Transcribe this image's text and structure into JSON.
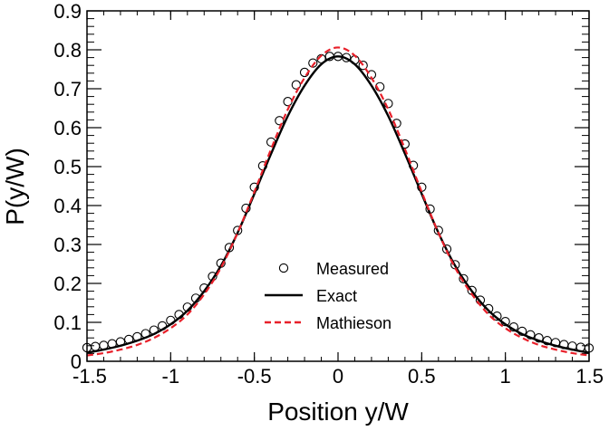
{
  "chart_data": {
    "type": "line",
    "title": "",
    "xlabel": "Position y/W",
    "ylabel": "P(y/W)",
    "xlim": [
      -1.5,
      1.5
    ],
    "ylim": [
      0,
      0.9
    ],
    "xticks": [
      -1.5,
      -1,
      -0.5,
      0,
      0.5,
      1,
      1.5
    ],
    "xtick_labels": [
      "-1.5",
      "-1",
      "-0.5",
      "0",
      "0.5",
      "1",
      "1.5"
    ],
    "yticks": [
      0,
      0.1,
      0.2,
      0.3,
      0.4,
      0.5,
      0.6,
      0.7,
      0.8,
      0.9
    ],
    "ytick_labels": [
      "0",
      "0.1",
      "0.2",
      "0.3",
      "0.4",
      "0.5",
      "0.6",
      "0.7",
      "0.8",
      "0.9"
    ],
    "grid": false,
    "legend_position": "bottom-center",
    "series": [
      {
        "name": "Measured",
        "style": "markers",
        "marker": "open-circle",
        "color": "#000000",
        "x": [
          -1.5,
          -1.45,
          -1.4,
          -1.35,
          -1.3,
          -1.25,
          -1.2,
          -1.15,
          -1.1,
          -1.05,
          -1.0,
          -0.95,
          -0.9,
          -0.85,
          -0.8,
          -0.75,
          -0.7,
          -0.65,
          -0.6,
          -0.55,
          -0.5,
          -0.45,
          -0.4,
          -0.35,
          -0.3,
          -0.25,
          -0.2,
          -0.15,
          -0.1,
          -0.05,
          0.0,
          0.05,
          0.1,
          0.15,
          0.2,
          0.25,
          0.3,
          0.35,
          0.4,
          0.45,
          0.5,
          0.55,
          0.6,
          0.65,
          0.7,
          0.75,
          0.8,
          0.85,
          0.9,
          0.95,
          1.0,
          1.05,
          1.1,
          1.15,
          1.2,
          1.25,
          1.3,
          1.35,
          1.4,
          1.45,
          1.5
        ],
        "y": [
          0.035,
          0.038,
          0.041,
          0.045,
          0.05,
          0.056,
          0.063,
          0.071,
          0.08,
          0.091,
          0.105,
          0.12,
          0.139,
          0.162,
          0.188,
          0.218,
          0.252,
          0.292,
          0.336,
          0.393,
          0.447,
          0.502,
          0.563,
          0.618,
          0.667,
          0.71,
          0.742,
          0.766,
          0.777,
          0.783,
          0.783,
          0.78,
          0.774,
          0.76,
          0.736,
          0.705,
          0.662,
          0.611,
          0.558,
          0.503,
          0.447,
          0.391,
          0.336,
          0.288,
          0.248,
          0.212,
          0.182,
          0.157,
          0.135,
          0.116,
          0.102,
          0.088,
          0.077,
          0.068,
          0.06,
          0.053,
          0.048,
          0.043,
          0.039,
          0.036,
          0.034
        ]
      },
      {
        "name": "Exact",
        "style": "solid",
        "color": "#000000",
        "x": [
          -1.5,
          -1.4,
          -1.3,
          -1.2,
          -1.1,
          -1.0,
          -0.9,
          -0.8,
          -0.7,
          -0.6,
          -0.5,
          -0.4,
          -0.3,
          -0.2,
          -0.1,
          0.0,
          0.1,
          0.2,
          0.3,
          0.4,
          0.5,
          0.6,
          0.7,
          0.8,
          0.9,
          1.0,
          1.1,
          1.2,
          1.3,
          1.4,
          1.5
        ],
        "y": [
          0.022,
          0.03,
          0.04,
          0.053,
          0.07,
          0.095,
          0.13,
          0.18,
          0.245,
          0.33,
          0.43,
          0.533,
          0.63,
          0.708,
          0.763,
          0.783,
          0.763,
          0.708,
          0.63,
          0.533,
          0.43,
          0.33,
          0.245,
          0.18,
          0.13,
          0.095,
          0.07,
          0.053,
          0.04,
          0.03,
          0.022
        ]
      },
      {
        "name": "Mathieson",
        "style": "dashed",
        "color": "#e8202a",
        "x": [
          -1.5,
          -1.4,
          -1.3,
          -1.2,
          -1.1,
          -1.0,
          -0.9,
          -0.8,
          -0.7,
          -0.6,
          -0.5,
          -0.4,
          -0.3,
          -0.2,
          -0.1,
          0.0,
          0.1,
          0.2,
          0.3,
          0.4,
          0.5,
          0.6,
          0.7,
          0.8,
          0.9,
          1.0,
          1.1,
          1.2,
          1.3,
          1.4,
          1.5
        ],
        "y": [
          0.015,
          0.021,
          0.03,
          0.042,
          0.06,
          0.085,
          0.12,
          0.172,
          0.24,
          0.33,
          0.435,
          0.545,
          0.647,
          0.728,
          0.785,
          0.806,
          0.785,
          0.728,
          0.647,
          0.545,
          0.435,
          0.33,
          0.24,
          0.172,
          0.12,
          0.085,
          0.06,
          0.042,
          0.03,
          0.021,
          0.015
        ]
      }
    ]
  }
}
